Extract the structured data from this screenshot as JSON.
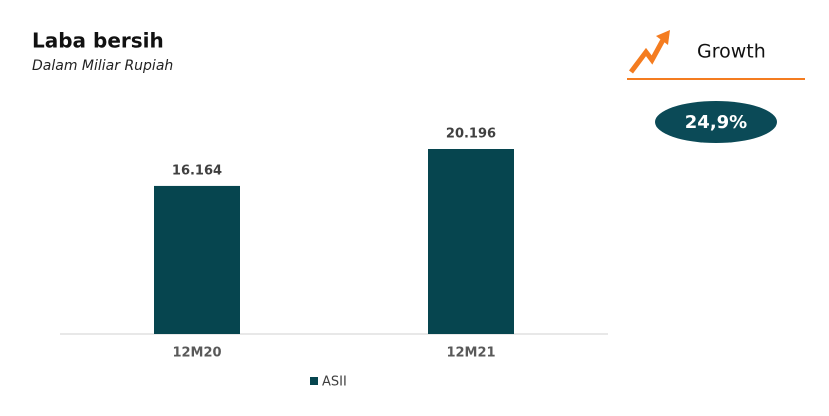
{
  "chart_data": {
    "type": "bar",
    "title": "Laba bersih",
    "subtitle": "Dalam Miliar Rupiah",
    "categories": [
      "12M20",
      "12M21"
    ],
    "series": [
      {
        "name": "ASII",
        "color": "#06454f",
        "values": [
          16164,
          20196
        ],
        "value_labels": [
          "16.164",
          "20.196"
        ]
      }
    ],
    "annotations": {
      "growth_label": "Growth",
      "growth_value": "24,9%"
    }
  }
}
